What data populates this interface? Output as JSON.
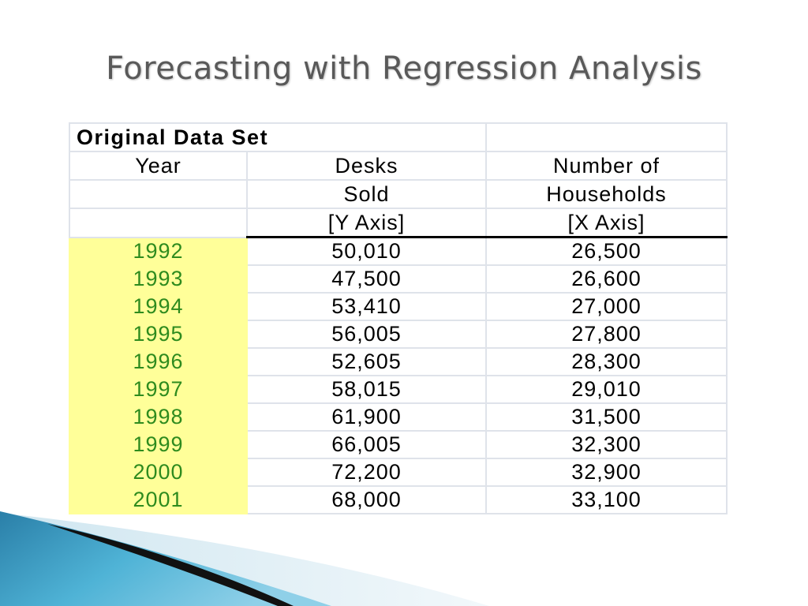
{
  "title": "Forecasting with Regression Analysis",
  "table": {
    "set_title": "Original Data Set",
    "headers": {
      "year": "Year",
      "desks_line1": "Desks",
      "desks_line2": "Sold",
      "desks_line3": "[Y Axis]",
      "households_line1": "Number of",
      "households_line2": "Households",
      "households_line3": "[X Axis]"
    },
    "rows": [
      {
        "year": "1992",
        "desks": "50,010",
        "households": "26,500"
      },
      {
        "year": "1993",
        "desks": "47,500",
        "households": "26,600"
      },
      {
        "year": "1994",
        "desks": "53,410",
        "households": "27,000"
      },
      {
        "year": "1995",
        "desks": "56,005",
        "households": "27,800"
      },
      {
        "year": "1996",
        "desks": "52,605",
        "households": "28,300"
      },
      {
        "year": "1997",
        "desks": "58,015",
        "households": "29,010"
      },
      {
        "year": "1998",
        "desks": "61,900",
        "households": "31,500"
      },
      {
        "year": "1999",
        "desks": "66,005",
        "households": "32,300"
      },
      {
        "year": "2000",
        "desks": "72,200",
        "households": "32,900"
      },
      {
        "year": "2001",
        "desks": "68,000",
        "households": "33,100"
      }
    ]
  },
  "colors": {
    "year_fill": "#ffff99",
    "year_text": "#2e8b1e",
    "title_text": "#595959",
    "swoosh_blue": "#3a9fc4"
  }
}
